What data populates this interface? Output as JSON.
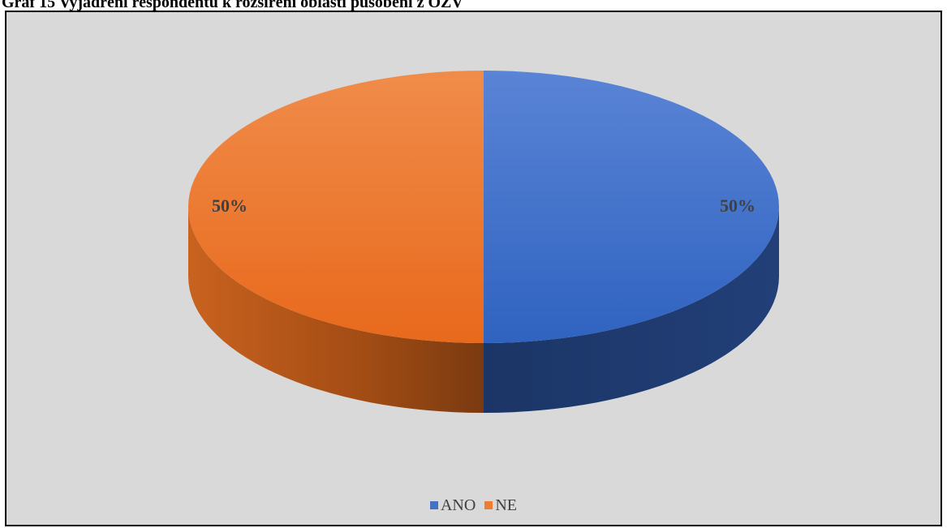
{
  "caption": "Graf 15 Vyjádření respondentů k rozšíření oblasti působení z OZV",
  "chart_data": {
    "type": "pie",
    "categories": [
      "ANO",
      "NE"
    ],
    "values": [
      50,
      50
    ],
    "data_labels": [
      "50%",
      "50%"
    ],
    "colors": [
      "#4472c4",
      "#ed7d31"
    ],
    "legend_position": "bottom",
    "style": "3d"
  }
}
